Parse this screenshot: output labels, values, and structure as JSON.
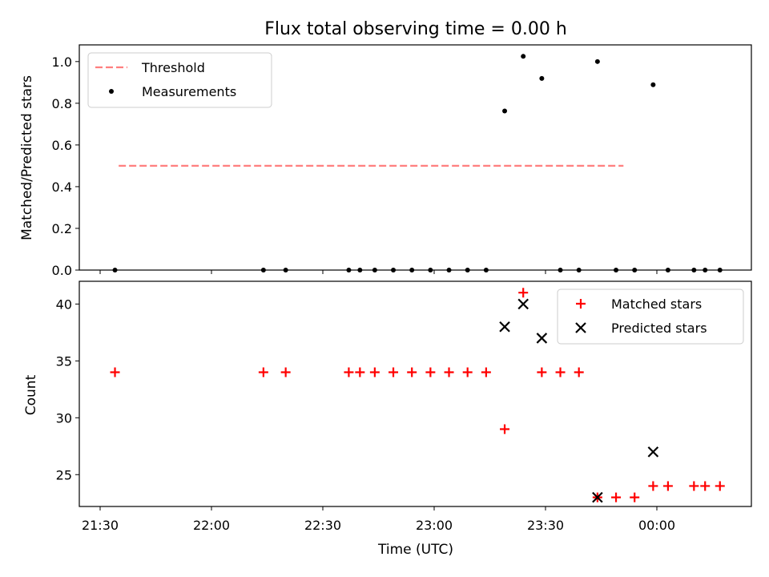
{
  "chart_data": [
    {
      "type": "scatter",
      "title": "Flux total observing time = 0.00 h",
      "xlabel": "",
      "ylabel": "Matched/Predicted stars",
      "ylim": [
        0,
        1.08
      ],
      "yticks": [
        "0.0",
        "0.2",
        "0.4",
        "0.6",
        "0.8",
        "1.0"
      ],
      "ytick_values": [
        0,
        0.2,
        0.4,
        0.6,
        0.8,
        1.0
      ],
      "legend_position": "upper-left",
      "series": [
        {
          "name": "Threshold",
          "kind": "dashed-line",
          "color": "#ff7f7f",
          "x": [
            "21:35",
            "23:51"
          ],
          "y": [
            0.5,
            0.5
          ]
        },
        {
          "name": "Measurements",
          "kind": "dot",
          "color": "#000000",
          "x": [
            "21:34",
            "22:14",
            "22:20",
            "22:37",
            "22:40",
            "22:44",
            "22:49",
            "22:54",
            "22:59",
            "23:04",
            "23:09",
            "23:14",
            "23:19",
            "23:24",
            "23:29",
            "23:34",
            "23:39",
            "23:44",
            "23:49",
            "23:54",
            "23:59",
            "00:03",
            "00:10",
            "00:13",
            "00:17"
          ],
          "y": [
            0,
            0,
            0,
            0,
            0,
            0,
            0,
            0,
            0,
            0,
            0,
            0,
            0.763,
            1.025,
            0.919,
            0,
            0,
            1.0,
            0,
            0,
            0.889,
            0,
            0,
            0,
            0
          ]
        }
      ]
    },
    {
      "type": "scatter",
      "title": "",
      "xlabel": "Time (UTC)",
      "ylabel": "Count",
      "ylim": [
        22.2,
        42
      ],
      "yticks": [
        "25",
        "30",
        "35",
        "40"
      ],
      "ytick_values": [
        25,
        30,
        35,
        40
      ],
      "xticks": [
        "21:30",
        "22:00",
        "22:30",
        "23:00",
        "23:30",
        "00:00"
      ],
      "legend_position": "upper-right",
      "series": [
        {
          "name": "Matched stars",
          "kind": "plus",
          "color": "#ff0000",
          "x": [
            "21:34",
            "22:14",
            "22:20",
            "22:37",
            "22:40",
            "22:44",
            "22:49",
            "22:54",
            "22:59",
            "23:04",
            "23:09",
            "23:14",
            "23:19",
            "23:24",
            "23:29",
            "23:34",
            "23:39",
            "23:44",
            "23:49",
            "23:54",
            "23:59",
            "00:03",
            "00:10",
            "00:13",
            "00:17"
          ],
          "y": [
            34,
            34,
            34,
            34,
            34,
            34,
            34,
            34,
            34,
            34,
            34,
            34,
            29,
            41,
            34,
            34,
            34,
            23,
            23,
            23,
            24,
            24,
            24,
            24,
            24
          ]
        },
        {
          "name": "Predicted stars",
          "kind": "x",
          "color": "#000000",
          "x": [
            "23:19",
            "23:24",
            "23:29",
            "23:44",
            "23:59"
          ],
          "y": [
            38,
            40,
            37,
            23,
            27
          ]
        }
      ]
    }
  ]
}
